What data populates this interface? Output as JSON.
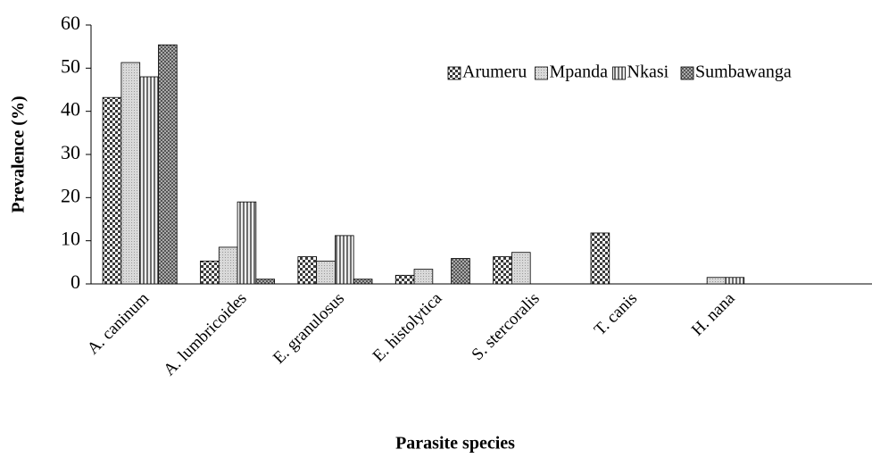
{
  "chart_data": {
    "type": "bar",
    "x_label": "Parasite species",
    "y_label": "Prevalence (%)",
    "categories": [
      "A. caninum",
      "A. lumbricoides",
      "E. granulosus",
      "E. histolytica",
      "S. stercoralis",
      "T. canis",
      "H. nana"
    ],
    "series": [
      {
        "name": "Arumeru",
        "color": "#3a3a3a",
        "values": [
          43.2,
          5.3,
          6.3,
          2.0,
          6.3,
          11.8,
          0
        ]
      },
      {
        "name": "Mpanda",
        "color": "#d9d9d9",
        "values": [
          51.3,
          8.5,
          5.3,
          3.4,
          7.3,
          0,
          1.5
        ]
      },
      {
        "name": "Nkasi",
        "color": "#6e6e6e",
        "values": [
          48.0,
          19.0,
          11.2,
          0,
          0,
          0,
          1.5
        ]
      },
      {
        "name": "Sumbawanga",
        "color": "#555555",
        "values": [
          55.4,
          1.1,
          1.1,
          5.9,
          0,
          0,
          0
        ]
      }
    ],
    "ylim": [
      0,
      60
    ],
    "yticks": [
      0,
      10,
      20,
      30,
      40,
      50,
      60
    ],
    "grid": false,
    "legend": "top-right"
  }
}
